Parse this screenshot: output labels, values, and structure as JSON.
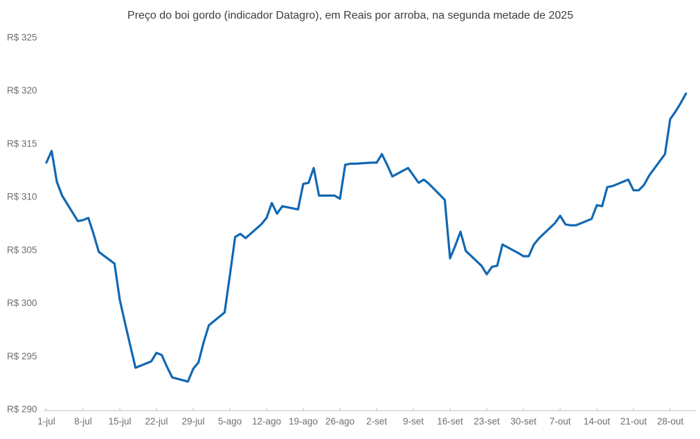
{
  "chart_data": {
    "type": "line",
    "title": "Preço do boi gordo (indicador Datagro), em Reais por arroba, na segunda metade de 2025",
    "xlabel": "",
    "ylabel": "",
    "ylim": [
      290,
      325
    ],
    "x_start": "2025-07-01",
    "x_end": "2025-10-31",
    "grid": false,
    "legend_position": "none",
    "line_color": "#1168b3",
    "axis_line_color": "#c9c9c9",
    "tick_label_color": "#6e6e6e",
    "title_color": "#3c3c3c",
    "y_ticks": [
      {
        "value": 325,
        "label": "R$ 325"
      },
      {
        "value": 320,
        "label": "R$ 320"
      },
      {
        "value": 315,
        "label": "R$ 315"
      },
      {
        "value": 310,
        "label": "R$ 310"
      },
      {
        "value": 305,
        "label": "R$ 305"
      },
      {
        "value": 300,
        "label": "R$ 300"
      },
      {
        "value": 295,
        "label": "R$ 295"
      },
      {
        "value": 290,
        "label": "R$ 290"
      }
    ],
    "x_ticks": [
      {
        "date": "2025-07-01",
        "label": "1-jul"
      },
      {
        "date": "2025-07-08",
        "label": "8-jul"
      },
      {
        "date": "2025-07-15",
        "label": "15-jul"
      },
      {
        "date": "2025-07-22",
        "label": "22-jul"
      },
      {
        "date": "2025-07-29",
        "label": "29-jul"
      },
      {
        "date": "2025-08-05",
        "label": "5-ago"
      },
      {
        "date": "2025-08-12",
        "label": "12-ago"
      },
      {
        "date": "2025-08-19",
        "label": "19-ago"
      },
      {
        "date": "2025-08-26",
        "label": "26-ago"
      },
      {
        "date": "2025-09-02",
        "label": "2-set"
      },
      {
        "date": "2025-09-09",
        "label": "9-set"
      },
      {
        "date": "2025-09-16",
        "label": "16-set"
      },
      {
        "date": "2025-09-23",
        "label": "23-set"
      },
      {
        "date": "2025-09-30",
        "label": "30-set"
      },
      {
        "date": "2025-10-07",
        "label": "7-out"
      },
      {
        "date": "2025-10-14",
        "label": "14-out"
      },
      {
        "date": "2025-10-21",
        "label": "21-out"
      },
      {
        "date": "2025-10-28",
        "label": "28-out"
      }
    ],
    "x": [
      "2025-07-01",
      "2025-07-02",
      "2025-07-03",
      "2025-07-04",
      "2025-07-07",
      "2025-07-08",
      "2025-07-09",
      "2025-07-10",
      "2025-07-11",
      "2025-07-14",
      "2025-07-15",
      "2025-07-16",
      "2025-07-17",
      "2025-07-18",
      "2025-07-21",
      "2025-07-22",
      "2025-07-23",
      "2025-07-24",
      "2025-07-25",
      "2025-07-28",
      "2025-07-29",
      "2025-07-30",
      "2025-07-31",
      "2025-08-01",
      "2025-08-04",
      "2025-08-05",
      "2025-08-06",
      "2025-08-07",
      "2025-08-08",
      "2025-08-11",
      "2025-08-12",
      "2025-08-13",
      "2025-08-14",
      "2025-08-15",
      "2025-08-18",
      "2025-08-19",
      "2025-08-20",
      "2025-08-21",
      "2025-08-22",
      "2025-08-25",
      "2025-08-26",
      "2025-08-27",
      "2025-08-28",
      "2025-08-29",
      "2025-09-01",
      "2025-09-02",
      "2025-09-03",
      "2025-09-04",
      "2025-09-05",
      "2025-09-08",
      "2025-09-09",
      "2025-09-10",
      "2025-09-11",
      "2025-09-12",
      "2025-09-15",
      "2025-09-16",
      "2025-09-17",
      "2025-09-18",
      "2025-09-19",
      "2025-09-22",
      "2025-09-23",
      "2025-09-24",
      "2025-09-25",
      "2025-09-26",
      "2025-09-29",
      "2025-09-30",
      "2025-10-01",
      "2025-10-02",
      "2025-10-03",
      "2025-10-06",
      "2025-10-07",
      "2025-10-08",
      "2025-10-09",
      "2025-10-10",
      "2025-10-13",
      "2025-10-14",
      "2025-10-15",
      "2025-10-16",
      "2025-10-17",
      "2025-10-20",
      "2025-10-21",
      "2025-10-22",
      "2025-10-23",
      "2025-10-24",
      "2025-10-27",
      "2025-10-28",
      "2025-10-29",
      "2025-10-30",
      "2025-10-31"
    ],
    "values": [
      313.2,
      314.3,
      311.4,
      310.1,
      307.7,
      307.8,
      308.0,
      306.5,
      304.8,
      303.7,
      300.3,
      298.1,
      296.0,
      293.9,
      294.5,
      295.3,
      295.1,
      294.0,
      293.0,
      292.6,
      293.8,
      294.4,
      296.3,
      297.9,
      299.1,
      302.6,
      306.2,
      306.5,
      306.1,
      307.4,
      308.0,
      309.4,
      308.4,
      309.1,
      308.8,
      311.2,
      311.3,
      312.7,
      310.1,
      310.1,
      309.8,
      313.0,
      313.1,
      313.1,
      313.2,
      313.2,
      314.0,
      313.0,
      311.9,
      312.7,
      312.0,
      311.3,
      311.6,
      311.2,
      309.7,
      304.2,
      305.4,
      306.7,
      304.9,
      303.5,
      302.7,
      303.4,
      303.5,
      305.5,
      304.7,
      304.4,
      304.4,
      305.5,
      306.1,
      307.5,
      308.2,
      307.4,
      307.3,
      307.3,
      307.9,
      309.2,
      309.1,
      310.9,
      311.0,
      311.6,
      310.6,
      310.6,
      311.1,
      312.0,
      314.0,
      317.3,
      318.0,
      318.8,
      319.7
    ]
  }
}
